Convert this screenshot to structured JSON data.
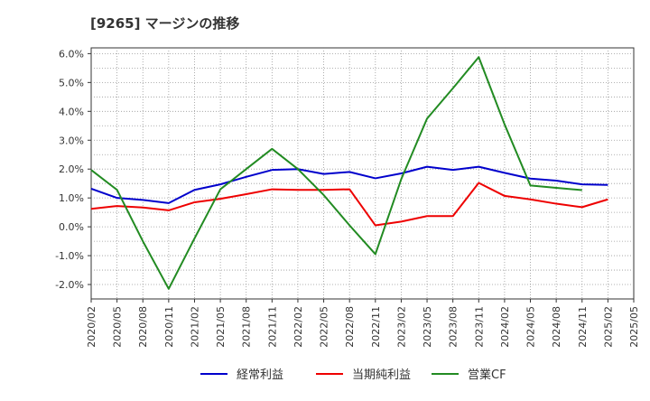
{
  "chart_data": {
    "type": "line",
    "title": "[9265]  マージンの推移",
    "x": [
      "2020/02",
      "2020/05",
      "2020/08",
      "2020/11",
      "2021/02",
      "2021/05",
      "2021/08",
      "2021/11",
      "2022/02",
      "2022/05",
      "2022/08",
      "2022/11",
      "2023/02",
      "2023/05",
      "2023/08",
      "2023/11",
      "2024/02",
      "2024/05",
      "2024/08",
      "2024/11",
      "2025/02",
      "2025/05"
    ],
    "y_ticks": [
      "-2.0%",
      "-1.0%",
      "0.0%",
      "1.0%",
      "2.0%",
      "3.0%",
      "4.0%",
      "5.0%",
      "6.0%"
    ],
    "ylim": [
      -2.5,
      6.2
    ],
    "grid": true,
    "legend_position": "bottom",
    "series": [
      {
        "name": "経常利益",
        "color": "#0000cc",
        "values": [
          1.32,
          1.0,
          0.93,
          0.82,
          1.28,
          1.47,
          1.73,
          1.97,
          2.0,
          1.83,
          1.9,
          1.68,
          1.85,
          2.08,
          1.97,
          2.08,
          1.87,
          1.67,
          1.6,
          1.47,
          1.45,
          null
        ]
      },
      {
        "name": "当期純利益",
        "color": "#ee0000",
        "values": [
          0.62,
          0.72,
          0.67,
          0.57,
          0.85,
          0.97,
          1.13,
          1.3,
          1.28,
          1.28,
          1.3,
          0.05,
          0.18,
          0.37,
          0.37,
          1.52,
          1.07,
          0.95,
          0.8,
          0.68,
          0.95,
          null
        ]
      },
      {
        "name": "営業CF",
        "color": "#228b22",
        "values": [
          1.97,
          1.28,
          -0.5,
          -2.15,
          -0.4,
          1.3,
          2.0,
          2.7,
          2.0,
          1.1,
          0.05,
          -0.95,
          1.65,
          3.75,
          4.8,
          5.88,
          3.55,
          1.43,
          1.35,
          1.27,
          null,
          null
        ]
      }
    ]
  }
}
